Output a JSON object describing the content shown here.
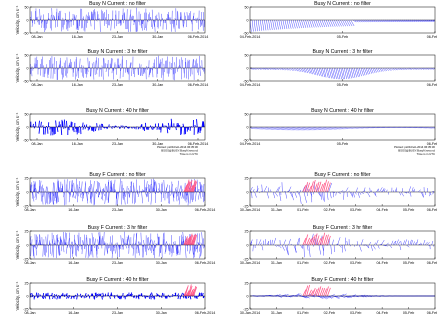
{
  "figure": {
    "annotations": {
      "left": [
        "Plotted: ps09-Feb-2014 06:35:30",
        "BSGS@BUSY:BusyN.sea.ncl",
        "Time is in UTC"
      ],
      "right": [
        "Plotted: ps09-Feb-2014 06:35:30",
        "BSGS@BUSY:BusyN.sea.ncl",
        "Time is in UTC"
      ]
    }
  },
  "chart_data": [
    {
      "id": "n-left-nofilter",
      "type": "vector-stick",
      "title": "Busy N Current : no filter",
      "ylabel": "Velocity, cm s⁻¹",
      "ylim": [
        -50,
        50
      ],
      "yticks": [
        "50",
        "0",
        "-50"
      ],
      "xticks": [
        "08-Jan",
        "16-Jan",
        "23-Jan",
        "30-Jan",
        "06-Feb-2014"
      ],
      "x_range": [
        "2014-01-04",
        "2014-02-06"
      ],
      "highlight": null,
      "colors": {
        "sticks": "#0000ff",
        "highlight": "#ff5a8a"
      }
    },
    {
      "id": "n-left-3hr",
      "type": "vector-stick",
      "title": "Busy N Current : 3 hr filter",
      "ylabel": "Velocity, cm s⁻¹",
      "ylim": [
        -50,
        50
      ],
      "yticks": [
        "50",
        "0",
        "-50"
      ],
      "xticks": [
        "08-Jan",
        "16-Jan",
        "23-Jan",
        "30-Jan",
        "06-Feb-2014"
      ],
      "x_range": [
        "2014-01-04",
        "2014-02-06"
      ],
      "highlight": null,
      "colors": {
        "sticks": "#0000ff",
        "highlight": "#ff5a8a"
      }
    },
    {
      "id": "n-left-40hr",
      "type": "vector-stick",
      "title": "Busy N Current : 40 hr filter",
      "ylabel": "Velocity, cm s⁻¹",
      "ylim": [
        -50,
        50
      ],
      "yticks": [
        "50",
        "0",
        "-50"
      ],
      "xticks": [
        "08-Jan",
        "16-Jan",
        "23-Jan",
        "30-Jan",
        "06-Feb-2014"
      ],
      "x_range": [
        "2014-01-04",
        "2014-02-06"
      ],
      "highlight": null,
      "colors": {
        "sticks": "#0000ff",
        "highlight": "#ff5a8a"
      }
    },
    {
      "id": "n-right-nofilter",
      "type": "vector-stick",
      "title": "Busy N Current : no filter",
      "ylabel": "",
      "ylim": [
        -50,
        50
      ],
      "yticks": [
        "50",
        "0",
        "-50"
      ],
      "xticks": [
        "04-Feb-2014",
        "05-Feb",
        "06-Feb-20"
      ],
      "x_range": [
        "2014-02-04",
        "2014-02-06"
      ],
      "highlight": null,
      "colors": {
        "sticks": "#0000ff",
        "highlight": "#ff5a8a"
      }
    },
    {
      "id": "n-right-3hr",
      "type": "vector-stick",
      "title": "Busy N Current : 3 hr filter",
      "ylabel": "",
      "ylim": [
        -50,
        50
      ],
      "yticks": [
        "50",
        "0",
        "-50"
      ],
      "xticks": [
        "04-Feb-2014",
        "05-Feb",
        "06-Feb-20"
      ],
      "x_range": [
        "2014-02-04",
        "2014-02-06"
      ],
      "highlight": null,
      "colors": {
        "sticks": "#0000ff",
        "highlight": "#ff5a8a"
      }
    },
    {
      "id": "n-right-40hr",
      "type": "vector-stick",
      "title": "Busy N Current : 40 hr filter",
      "ylabel": "",
      "ylim": [
        -50,
        50
      ],
      "yticks": [
        "50",
        "0",
        "-50"
      ],
      "xticks": [
        "04-Feb-2014",
        "05-Feb",
        "06-Feb-20"
      ],
      "x_range": [
        "2014-02-04",
        "2014-02-06"
      ],
      "highlight": null,
      "colors": {
        "sticks": "#0000ff",
        "highlight": "#ff5a8a"
      }
    },
    {
      "id": "f-left-nofilter",
      "type": "vector-stick",
      "title": "Busy F Current : no filter",
      "ylabel": "Velocity, cm s⁻¹",
      "ylim": [
        -25,
        25
      ],
      "yticks": [
        "25",
        "0",
        "-25"
      ],
      "xticks": [
        "08-Jan",
        "16-Jan",
        "23-Jan",
        "30-Jan",
        "06-Feb-2014"
      ],
      "x_range": [
        "2014-01-04",
        "2014-02-06"
      ],
      "highlight": {
        "from": "2014-02-02",
        "to": "2014-02-04"
      },
      "colors": {
        "sticks": "#0000ff",
        "highlight": "#ff5a8a"
      }
    },
    {
      "id": "f-left-3hr",
      "type": "vector-stick",
      "title": "Busy F Current : 3 hr filter",
      "ylabel": "Velocity, cm s⁻¹",
      "ylim": [
        -25,
        25
      ],
      "yticks": [
        "25",
        "0",
        "-25"
      ],
      "xticks": [
        "08-Jan",
        "16-Jan",
        "23-Jan",
        "30-Jan",
        "06-Feb-2014"
      ],
      "x_range": [
        "2014-01-04",
        "2014-02-06"
      ],
      "highlight": {
        "from": "2014-02-02",
        "to": "2014-02-04"
      },
      "colors": {
        "sticks": "#0000ff",
        "highlight": "#ff5a8a"
      }
    },
    {
      "id": "f-left-40hr",
      "type": "vector-stick",
      "title": "Busy F Current : 40 hr filter",
      "ylabel": "Velocity, cm s⁻¹",
      "ylim": [
        -25,
        25
      ],
      "yticks": [
        "25",
        "0",
        "-25"
      ],
      "xticks": [
        "08-Jan",
        "16-Jan",
        "23-Jan",
        "30-Jan",
        "06-Feb-2014"
      ],
      "x_range": [
        "2014-01-04",
        "2014-02-06"
      ],
      "highlight": {
        "from": "2014-02-02",
        "to": "2014-02-04"
      },
      "colors": {
        "sticks": "#0000ff",
        "highlight": "#ff5a8a"
      }
    },
    {
      "id": "f-right-nofilter",
      "type": "vector-stick",
      "title": "Busy F Current : no filter",
      "ylabel": "",
      "ylim": [
        -25,
        25
      ],
      "yticks": [
        "25",
        "0",
        "-25"
      ],
      "xticks": [
        "30-Jan-2014",
        "31-Jan",
        "01-Feb",
        "02-Feb",
        "03-Feb",
        "04-Feb",
        "05-Feb",
        "06-Feb-20"
      ],
      "x_range": [
        "2014-01-30",
        "2014-02-06"
      ],
      "highlight": {
        "from": "2014-02-01",
        "to": "2014-02-02"
      },
      "colors": {
        "sticks": "#0000ff",
        "highlight": "#ff5a8a"
      }
    },
    {
      "id": "f-right-3hr",
      "type": "vector-stick",
      "title": "Busy F Current : 3 hr filter",
      "ylabel": "",
      "ylim": [
        -25,
        25
      ],
      "yticks": [
        "25",
        "0",
        "-25"
      ],
      "xticks": [
        "30-Jan-2014",
        "31-Jan",
        "01-Feb",
        "02-Feb",
        "03-Feb",
        "04-Feb",
        "05-Feb",
        "06-Feb-20"
      ],
      "x_range": [
        "2014-01-30",
        "2014-02-06"
      ],
      "highlight": {
        "from": "2014-02-01",
        "to": "2014-02-02"
      },
      "colors": {
        "sticks": "#0000ff",
        "highlight": "#ff5a8a"
      }
    },
    {
      "id": "f-right-40hr",
      "type": "vector-stick",
      "title": "Busy F Current : 40 hr filter",
      "ylabel": "",
      "ylim": [
        -25,
        25
      ],
      "yticks": [
        "25",
        "0",
        "-25"
      ],
      "xticks": [
        "30-Jan-2014",
        "31-Jan",
        "01-Feb",
        "02-Feb",
        "03-Feb",
        "04-Feb",
        "05-Feb",
        "06-Feb-20"
      ],
      "x_range": [
        "2014-01-30",
        "2014-02-06"
      ],
      "highlight": {
        "from": "2014-02-01",
        "to": "2014-02-02"
      },
      "colors": {
        "sticks": "#0000ff",
        "highlight": "#ff5a8a"
      }
    }
  ]
}
